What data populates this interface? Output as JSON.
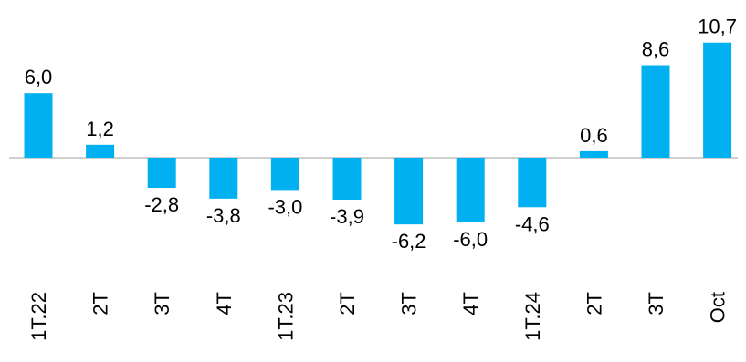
{
  "chart_data": {
    "type": "bar",
    "categories": [
      "1T.22",
      "2T",
      "3T",
      "4T",
      "1T.23",
      "2T",
      "3T",
      "4T",
      "1T.24",
      "2T",
      "3T",
      "Oct"
    ],
    "values": [
      6.0,
      1.2,
      -2.8,
      -3.8,
      -3.0,
      -3.9,
      -6.2,
      -6.0,
      -4.6,
      0.6,
      8.6,
      10.7
    ],
    "value_labels": [
      "6,0",
      "1,2",
      "-2,8",
      "-3,8",
      "-3,0",
      "-3,9",
      "-6,2",
      "-6,0",
      "-4,6",
      "0,6",
      "8,6",
      "10,7"
    ],
    "title": "",
    "xlabel": "",
    "ylabel": "",
    "bar_color": "#00b0f0",
    "axis_color": "#bfbfbf",
    "grid": false,
    "legend": "none"
  }
}
